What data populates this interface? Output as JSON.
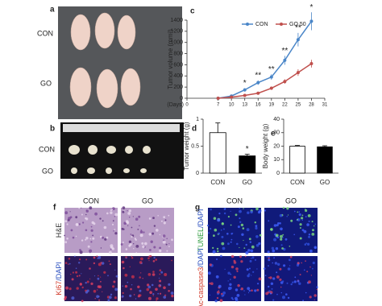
{
  "panels": {
    "a": {
      "label": "a",
      "rows": [
        "CON",
        "GO"
      ]
    },
    "b": {
      "label": "b",
      "rows": [
        "CON",
        "GO"
      ]
    },
    "f": {
      "label": "f",
      "columns": [
        "CON",
        "GO"
      ],
      "rows": [
        [
          "H&E"
        ],
        [
          "Ki67",
          "/DAPI"
        ]
      ],
      "row_colors": [
        [
          "#333"
        ],
        [
          "#d23a2a",
          "#2a4fbf"
        ]
      ]
    },
    "g": {
      "label": "g",
      "columns": [
        "CON",
        "GO"
      ],
      "rows": [
        [
          "TUNEL",
          "/DAPI"
        ],
        [
          "Ac-caspase3",
          "/DAPI"
        ]
      ],
      "row_colors": [
        [
          "#2a9a3a",
          "#2a4fbf"
        ],
        [
          "#d23a2a",
          "#2a4fbf"
        ]
      ]
    }
  },
  "chart_data": [
    {
      "type": "line",
      "label": "c",
      "ylabel": "Tumor volume (mm³)",
      "xlabel": "(Days)",
      "x": [
        7,
        10,
        13,
        16,
        19,
        22,
        25,
        28
      ],
      "series": [
        {
          "name": "CON",
          "color": "#4a86c8",
          "values": [
            0,
            40,
            150,
            280,
            380,
            680,
            1050,
            1380
          ],
          "errors": [
            0,
            10,
            30,
            40,
            50,
            80,
            120,
            160
          ]
        },
        {
          "name": "GO 50",
          "color": "#c0504d",
          "values": [
            0,
            20,
            50,
            90,
            180,
            300,
            460,
            620
          ],
          "errors": [
            0,
            5,
            10,
            15,
            30,
            40,
            60,
            70
          ]
        }
      ],
      "xlim": [
        0,
        31
      ],
      "xticks": [
        0,
        7,
        10,
        13,
        16,
        19,
        22,
        25,
        28,
        31
      ],
      "ylim": [
        0,
        1400
      ],
      "yticks": [
        0,
        200,
        400,
        600,
        800,
        1000,
        1200,
        1400
      ],
      "annotations": [
        {
          "x": 13,
          "text": "*"
        },
        {
          "x": 16,
          "text": "**"
        },
        {
          "x": 19,
          "text": "**"
        },
        {
          "x": 22,
          "text": "**"
        },
        {
          "x": 25,
          "text": "**"
        },
        {
          "x": 28,
          "text": "*"
        }
      ]
    },
    {
      "type": "bar",
      "label": "d",
      "ylabel": "Tumor weight (g)",
      "categories": [
        "CON",
        "GO"
      ],
      "values": [
        0.75,
        0.32
      ],
      "errors": [
        0.18,
        0.03
      ],
      "colors": [
        "#ffffff",
        "#000000"
      ],
      "ylim": [
        0,
        1
      ],
      "yticks": [
        0,
        0.5,
        1
      ],
      "annotations": [
        {
          "category": "GO",
          "text": "*"
        }
      ]
    },
    {
      "type": "bar",
      "label": "e",
      "ylabel": "Body weight (g)",
      "categories": [
        "CON",
        "GO"
      ],
      "values": [
        20,
        19.5
      ],
      "errors": [
        0.5,
        0.8
      ],
      "colors": [
        "#ffffff",
        "#000000"
      ],
      "ylim": [
        0,
        40
      ],
      "yticks": [
        0,
        10,
        20,
        30,
        40
      ]
    }
  ]
}
